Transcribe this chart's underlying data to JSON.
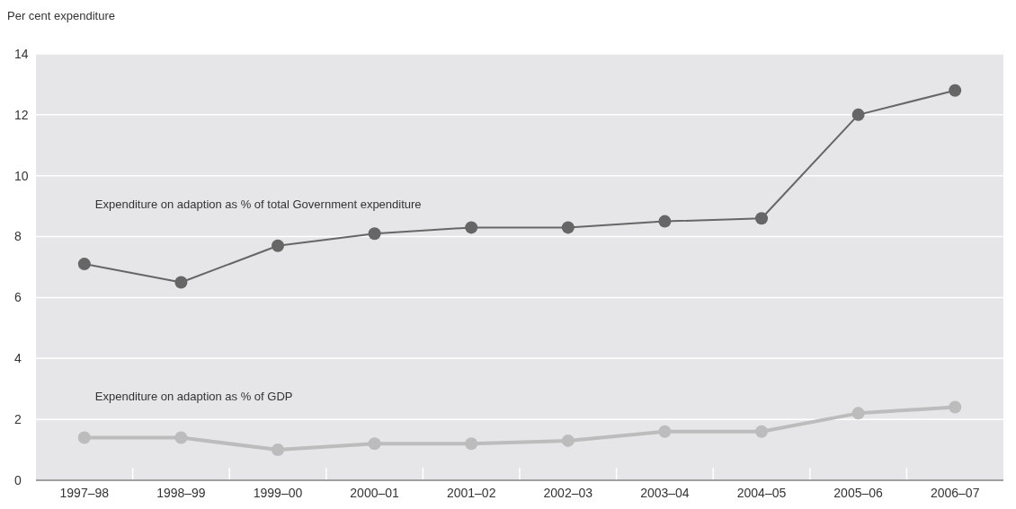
{
  "chart_data": {
    "type": "line",
    "ylabel": "Per cent expenditure",
    "categories": [
      "1997–98",
      "1998–99",
      "1999–00",
      "2000–01",
      "2001–02",
      "2002–03",
      "2003–04",
      "2004–05",
      "2005–06",
      "2006–07"
    ],
    "series": [
      {
        "name": "Expenditure on adaption as % of total Government expenditure",
        "color": "#666666",
        "values": [
          7.1,
          6.5,
          7.7,
          8.1,
          8.3,
          8.3,
          8.5,
          8.6,
          12.0,
          12.8
        ]
      },
      {
        "name": "Expenditure on adaption as % of GDP",
        "color": "#bcbcbc",
        "values": [
          1.4,
          1.4,
          1.0,
          1.2,
          1.2,
          1.3,
          1.6,
          1.6,
          2.2,
          2.4
        ]
      }
    ],
    "ylim": [
      0,
      14
    ],
    "yticks": [
      0,
      2,
      4,
      6,
      8,
      10,
      12,
      14
    ],
    "grid": "y",
    "marker": "circle",
    "line_style": "solid"
  }
}
